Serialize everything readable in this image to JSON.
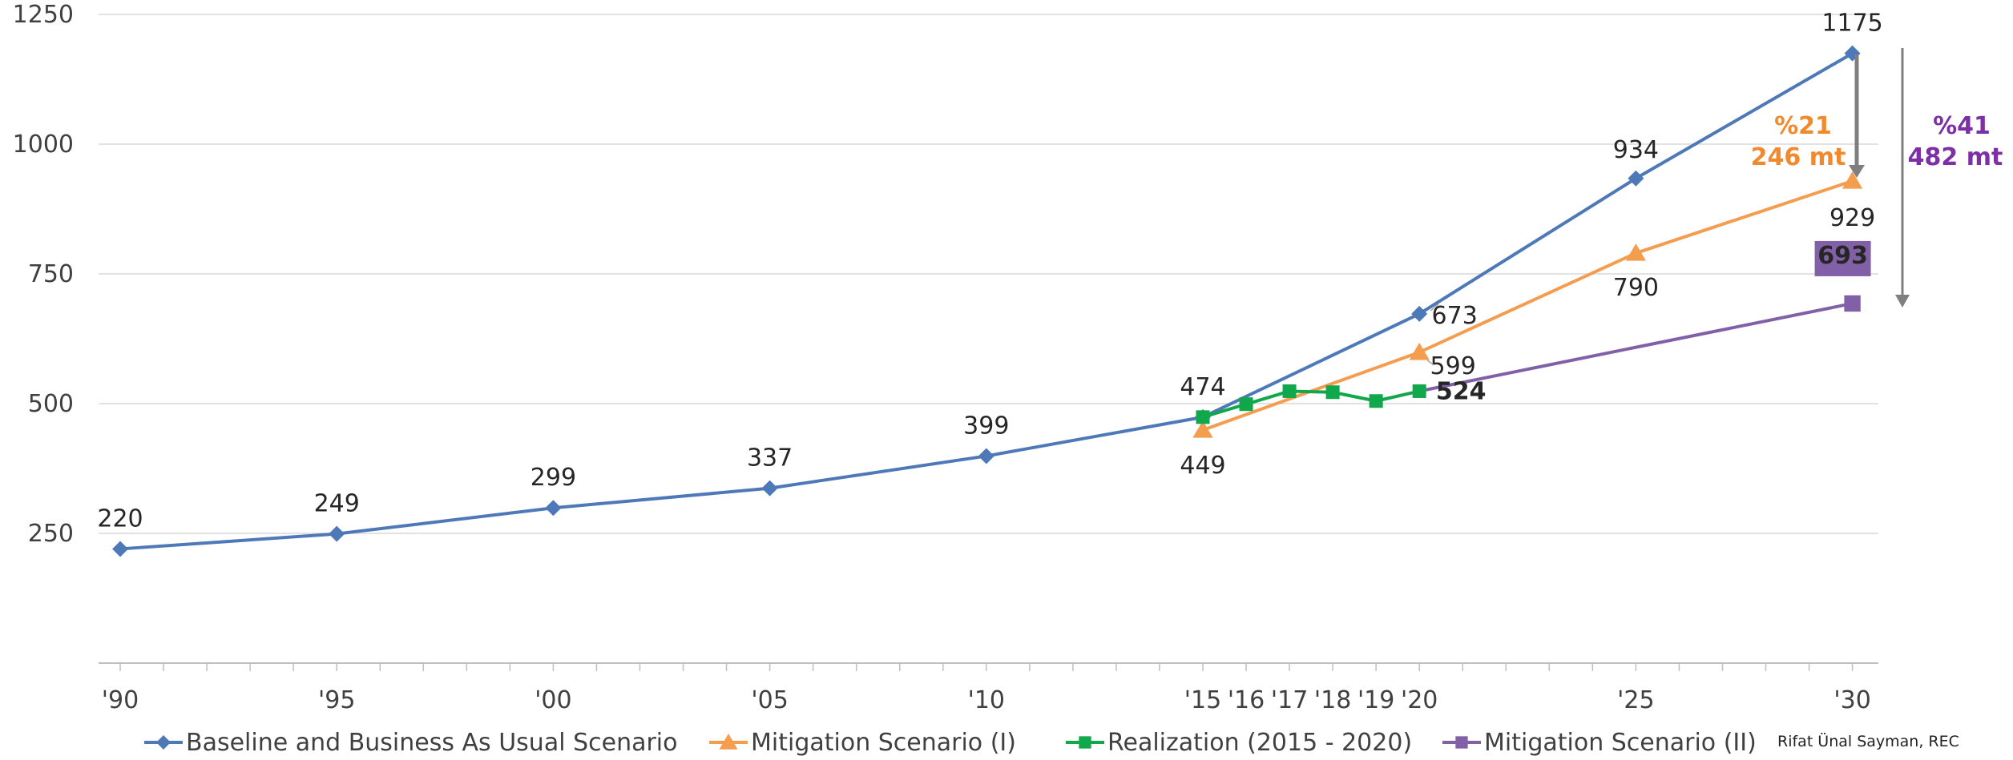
{
  "chart_data": {
    "type": "line",
    "ylim": [
      0,
      1250
    ],
    "yticks": [
      250,
      500,
      750,
      1000,
      1250
    ],
    "grid": true,
    "legend_position": "bottom",
    "x_ticks": [
      {
        "x": 1990,
        "label": "'90"
      },
      {
        "x": 1995,
        "label": "'95"
      },
      {
        "x": 2000,
        "label": "'00"
      },
      {
        "x": 2005,
        "label": "'05"
      },
      {
        "x": 2010,
        "label": "'10"
      },
      {
        "x": 2015,
        "label": "'15"
      },
      {
        "x": 2016,
        "label": "'16"
      },
      {
        "x": 2017,
        "label": "'17"
      },
      {
        "x": 2018,
        "label": "'18"
      },
      {
        "x": 2019,
        "label": "'19"
      },
      {
        "x": 2020,
        "label": "'20"
      },
      {
        "x": 2025,
        "label": "'25"
      },
      {
        "x": 2030,
        "label": "'30"
      }
    ],
    "series": [
      {
        "name": "Baseline and Business As Usual Scenario",
        "color": "#4e79b8",
        "marker": "diamond",
        "points": [
          [
            1990,
            220
          ],
          [
            1995,
            249
          ],
          [
            2000,
            299
          ],
          [
            2005,
            337
          ],
          [
            2010,
            399
          ],
          [
            2015,
            474
          ],
          [
            2020,
            673
          ],
          [
            2025,
            934
          ],
          [
            2030,
            1175
          ]
        ],
        "labels": [
          "220",
          "249",
          "299",
          "337",
          "399",
          "474",
          "673",
          "934",
          "1175"
        ]
      },
      {
        "name": "Mitigation Scenario (I)",
        "color": "#f59d4f",
        "marker": "triangle",
        "points": [
          [
            2015,
            449
          ],
          [
            2020,
            599
          ],
          [
            2025,
            790
          ],
          [
            2030,
            929
          ]
        ],
        "labels": [
          "449",
          "599",
          "790",
          "929"
        ]
      },
      {
        "name": "Realization (2015 - 2020)",
        "color": "#11a84c",
        "marker": "square",
        "points": [
          [
            2015,
            474
          ],
          [
            2016,
            499
          ],
          [
            2017,
            524
          ],
          [
            2018,
            522
          ],
          [
            2019,
            505
          ],
          [
            2020,
            524
          ]
        ],
        "labels": [
          "",
          "",
          "",
          "",
          "",
          "524"
        ]
      },
      {
        "name": "Mitigation Scenario (II)",
        "color": "#8160a8",
        "marker": "square",
        "points": [
          [
            2020,
            524
          ],
          [
            2030,
            693
          ]
        ],
        "labels": [
          "",
          "693"
        ]
      }
    ],
    "annotations": {
      "reduction_1_percent": "%21",
      "reduction_1_amount": "246 mt",
      "reduction_2_percent": "%41",
      "reduction_2_amount": "482 mt"
    },
    "credit": "Rifat Ünal Sayman, REC"
  }
}
